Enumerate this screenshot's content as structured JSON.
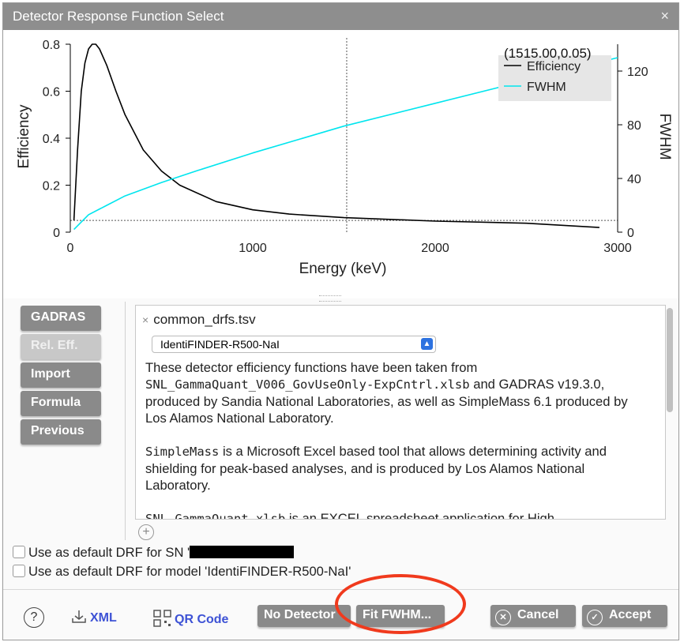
{
  "window": {
    "title": "Detector Response Function Select",
    "close_glyph": "×"
  },
  "chart_data": {
    "type": "line",
    "xlabel": "Energy (keV)",
    "ylabel": "Efficiency",
    "y2label": "FWHM",
    "xlim": [
      0,
      3000
    ],
    "ylim": [
      0,
      0.8
    ],
    "y2lim": [
      0,
      140
    ],
    "xticks": [
      "0",
      "1000",
      "2000",
      "3000"
    ],
    "yticks": [
      "0",
      "0.2",
      "0.4",
      "0.6",
      "0.8"
    ],
    "y2ticks": [
      "0",
      "40",
      "80",
      "120"
    ],
    "legend_position": "top-right",
    "cursor_readout": "(1515.00,0.05)",
    "cursor_x": 1515,
    "cursor_y": 0.05,
    "series": [
      {
        "name": "Efficiency",
        "axis": "left",
        "color": "#000000",
        "x": [
          20,
          40,
          60,
          80,
          100,
          120,
          140,
          160,
          200,
          250,
          300,
          400,
          500,
          600,
          800,
          1000,
          1200,
          1500,
          2000,
          2500,
          2900
        ],
        "y": [
          0.05,
          0.35,
          0.6,
          0.72,
          0.78,
          0.8,
          0.8,
          0.78,
          0.71,
          0.6,
          0.5,
          0.35,
          0.26,
          0.2,
          0.13,
          0.095,
          0.077,
          0.062,
          0.047,
          0.038,
          0.02
        ]
      },
      {
        "name": "FWHM",
        "axis": "right",
        "color": "#00e5ee",
        "x": [
          20,
          100,
          200,
          300,
          500,
          700,
          1000,
          1500,
          2000,
          2500,
          3000
        ],
        "y": [
          2,
          13,
          20,
          27,
          37,
          46,
          59,
          79,
          96,
          113,
          130
        ]
      }
    ]
  },
  "sidebar": {
    "buttons": [
      {
        "label": "GADRAS",
        "enabled": true
      },
      {
        "label": "Rel. Eff.",
        "enabled": false
      },
      {
        "label": "Import",
        "enabled": true
      },
      {
        "label": "Formula",
        "enabled": true
      },
      {
        "label": "Previous",
        "enabled": true
      }
    ]
  },
  "panel": {
    "tab_close": "×",
    "tab_title": "common_drfs.tsv",
    "select_value": "IdentiFINDER-R500-NaI",
    "add_glyph": "+",
    "desc_p1_a": "These detector efficiency functions have been taken from",
    "desc_p1_mono": "SNL_GammaQuant_V006_GovUseOnly-ExpCntrl.xlsb",
    "desc_p1_b": " and GADRAS v19.3.0, produced by Sandia National Laboratories, as well as SimpleMass 6.1 produced by Los Alamos National Laboratory.",
    "desc_p2_mono": "SimpleMass",
    "desc_p2_b": " is a Microsoft Excel based tool that allows determining activity and shielding for peak-based analyses, and is produced by Los Alamos National Laboratory.",
    "desc_p3_mono": "SNL_GammaQuant.xlsb",
    "desc_p3_b": " is an EXCEL spreadsheet application for High"
  },
  "checkboxes": {
    "sn_label": "Use as default DRF for SN '",
    "model_label": "Use as default DRF for model 'IdentiFINDER-R500-NaI'"
  },
  "footer": {
    "help": "?",
    "xml": "XML",
    "qr": "QR Code",
    "no_detector": "No Detector",
    "fit_fwhm": "Fit FWHM...",
    "cancel": "Cancel",
    "accept": "Accept"
  },
  "colors": {
    "titlebar": "#8e8e8e",
    "button": "#8a8a8a",
    "link": "#3d52d5",
    "annotation": "#f03a1d"
  }
}
